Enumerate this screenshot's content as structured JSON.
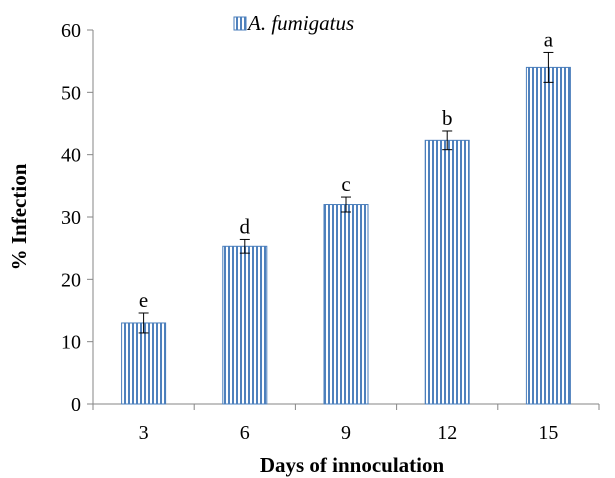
{
  "chart_data": {
    "type": "bar",
    "categories": [
      "3",
      "6",
      "9",
      "12",
      "15"
    ],
    "series": [
      {
        "name": "A. fumigatus",
        "values": [
          13,
          25.3,
          32,
          42.3,
          54
        ],
        "errors": [
          1.6,
          1.1,
          1.2,
          1.5,
          2.4
        ]
      }
    ],
    "significance_labels": [
      "e",
      "d",
      "c",
      "b",
      "a"
    ],
    "title": "",
    "xlabel": "Days of innoculation",
    "ylabel": "% Infection",
    "ylim": [
      0,
      60
    ],
    "yticks": [
      0,
      10,
      20,
      30,
      40,
      50,
      60
    ],
    "grid": false,
    "legend_position": "top-center",
    "bar_stripe_color": "#4f81bd",
    "bar_outline_color": "#4a7ebb"
  }
}
